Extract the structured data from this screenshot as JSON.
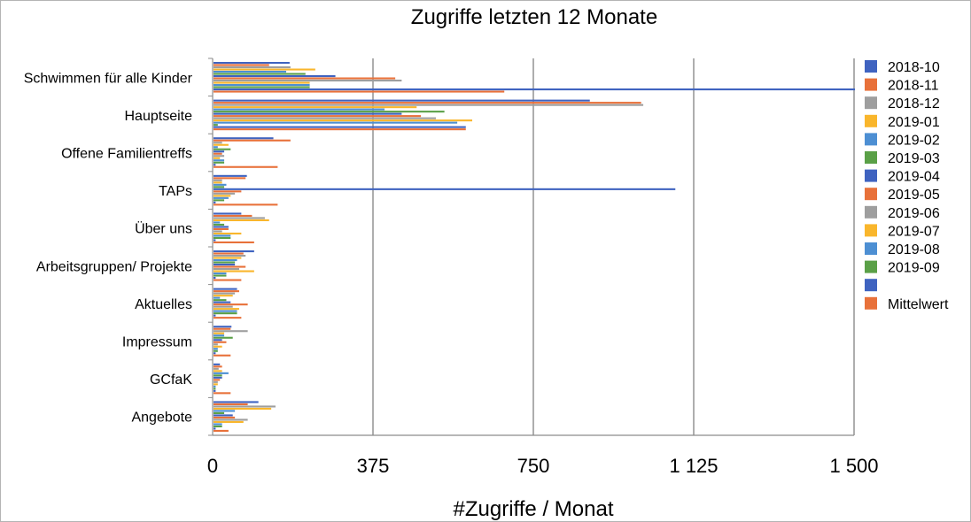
{
  "chart_data": {
    "type": "bar",
    "orientation": "horizontal",
    "title": "Zugriffe letzten 12 Monate",
    "xlabel": "#Zugriffe / Monat",
    "ylabel": "",
    "xlim": [
      0,
      1500
    ],
    "xticks": [
      0,
      375,
      750,
      1125,
      1500
    ],
    "xtick_labels": [
      "0",
      "375",
      "750",
      "1 125",
      "1 500"
    ],
    "grid": true,
    "legend_position": "right",
    "categories": [
      "Schwimmen für alle Kinder",
      "Hauptseite",
      "Offene Familientreffs",
      "TAPs",
      "Über uns",
      "Arbeitsgruppen/ Projekte",
      "Aktuelles",
      "Impressum",
      "GCfaK",
      "Angebote"
    ],
    "series": [
      {
        "name": "2018-10",
        "color": "#3f63c0",
        "values": [
          178,
          880,
          140,
          78,
          65,
          95,
          55,
          42,
          15,
          105
        ]
      },
      {
        "name": "2018-11",
        "color": "#e8713a",
        "values": [
          130,
          1000,
          180,
          75,
          90,
          70,
          60,
          40,
          20,
          80
        ]
      },
      {
        "name": "2018-12",
        "color": "#9e9e9e",
        "values": [
          180,
          1005,
          20,
          20,
          120,
          75,
          50,
          80,
          12,
          145
        ]
      },
      {
        "name": "2019-01",
        "color": "#f9b62c",
        "values": [
          238,
          475,
          35,
          20,
          130,
          65,
          45,
          25,
          20,
          135
        ]
      },
      {
        "name": "2019-02",
        "color": "#4d8fd3",
        "values": [
          170,
          400,
          10,
          30,
          15,
          55,
          15,
          25,
          35,
          50
        ]
      },
      {
        "name": "2019-03",
        "color": "#5aa047",
        "values": [
          215,
          540,
          40,
          25,
          25,
          50,
          30,
          45,
          20,
          25
        ]
      },
      {
        "name": "2019-04",
        "color": "#3f63c0",
        "values": [
          285,
          440,
          25,
          1080,
          35,
          50,
          40,
          20,
          20,
          45
        ]
      },
      {
        "name": "2019-05",
        "color": "#e8713a",
        "values": [
          425,
          485,
          20,
          65,
          35,
          75,
          80,
          30,
          15,
          50
        ]
      },
      {
        "name": "2019-06",
        "color": "#9e9e9e",
        "values": [
          440,
          520,
          25,
          50,
          20,
          60,
          45,
          10,
          10,
          80
        ]
      },
      {
        "name": "2019-07",
        "color": "#f9b62c",
        "values": [
          225,
          605,
          15,
          40,
          65,
          95,
          60,
          20,
          10,
          70
        ]
      },
      {
        "name": "2019-08",
        "color": "#4d8fd3",
        "values": [
          225,
          570,
          25,
          35,
          40,
          30,
          55,
          10,
          5,
          20
        ]
      },
      {
        "name": "2019-09",
        "color": "#5aa047",
        "values": [
          225,
          10,
          25,
          25,
          40,
          30,
          55,
          10,
          5,
          20
        ]
      },
      {
        "name": "",
        "color": "#3f63c0",
        "values": [
          1500,
          590,
          5,
          5,
          5,
          5,
          5,
          5,
          5,
          5
        ]
      },
      {
        "name": "Mittelwert",
        "color": "#e8713a",
        "values": [
          680,
          590,
          150,
          150,
          95,
          65,
          65,
          40,
          40,
          35
        ]
      }
    ]
  }
}
